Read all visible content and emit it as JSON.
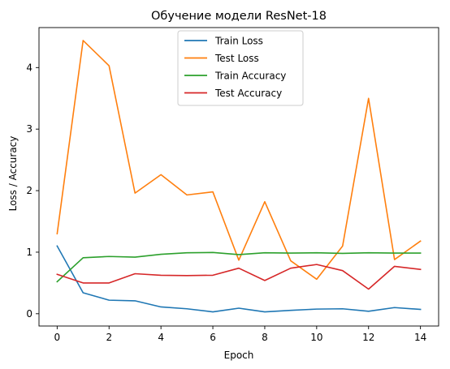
{
  "chart_data": {
    "type": "line",
    "title": "Обучение модели ResNet-18",
    "xlabel": "Epoch",
    "ylabel": "Loss / Accuracy",
    "x": [
      0,
      1,
      2,
      3,
      4,
      5,
      6,
      7,
      8,
      9,
      10,
      11,
      12,
      13,
      14
    ],
    "xlim": [
      -0.7,
      14.7
    ],
    "ylim": [
      -0.2,
      4.65
    ],
    "xticks": [
      0,
      2,
      4,
      6,
      8,
      10,
      12,
      14
    ],
    "yticks": [
      0,
      1,
      2,
      3,
      4
    ],
    "grid": false,
    "legend_position": "top-center",
    "series": [
      {
        "name": "Train Loss",
        "color": "#1f77b4",
        "values": [
          1.1,
          0.34,
          0.22,
          0.21,
          0.11,
          0.08,
          0.03,
          0.09,
          0.03,
          0.055,
          0.075,
          0.08,
          0.04,
          0.1,
          0.07
        ]
      },
      {
        "name": "Test Loss",
        "color": "#ff7f0e",
        "values": [
          1.3,
          4.44,
          4.03,
          1.96,
          2.26,
          1.93,
          1.98,
          0.87,
          1.82,
          0.86,
          0.56,
          1.1,
          3.5,
          0.88,
          1.18
        ]
      },
      {
        "name": "Train Accuracy",
        "color": "#2ca02c",
        "values": [
          0.52,
          0.91,
          0.93,
          0.92,
          0.965,
          0.99,
          0.995,
          0.96,
          0.99,
          0.985,
          0.99,
          0.98,
          0.99,
          0.985,
          0.985
        ]
      },
      {
        "name": "Test Accuracy",
        "color": "#d62728",
        "values": [
          0.64,
          0.5,
          0.5,
          0.65,
          0.625,
          0.62,
          0.625,
          0.74,
          0.54,
          0.74,
          0.8,
          0.7,
          0.4,
          0.77,
          0.72
        ]
      }
    ]
  }
}
